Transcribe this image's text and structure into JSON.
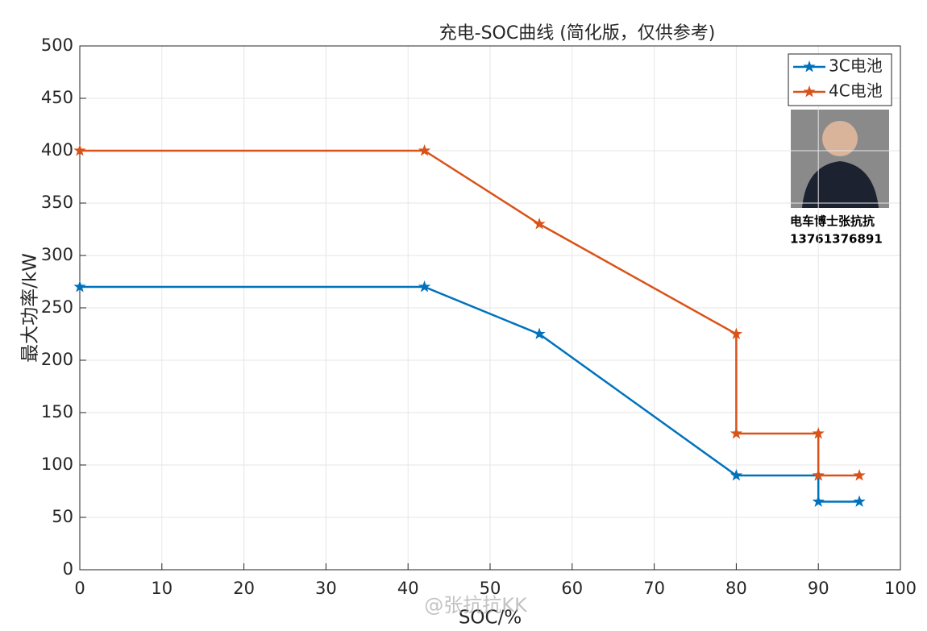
{
  "chart_data": {
    "type": "line",
    "title": "充电-SOC曲线 (简化版，仅供参考)",
    "xlabel": "SOC/%",
    "ylabel": "最大功率/kW",
    "xlim": [
      0,
      100
    ],
    "xticks": [
      0,
      10,
      20,
      30,
      40,
      50,
      60,
      70,
      80,
      90,
      100
    ],
    "ylim": [
      0,
      500
    ],
    "yticks": [
      0,
      50,
      100,
      150,
      200,
      250,
      300,
      350,
      400,
      450,
      500
    ],
    "grid": true,
    "legend": "northeast",
    "series": [
      {
        "name": "3C电池",
        "color": "#0072bd",
        "x": [
          0,
          42,
          56,
          80,
          90,
          90,
          95
        ],
        "values": [
          270,
          270,
          225,
          90,
          90,
          65,
          65
        ]
      },
      {
        "name": "4C电池",
        "color": "#d95319",
        "x": [
          0,
          42,
          56,
          80,
          80,
          90,
          90,
          95
        ],
        "values": [
          400,
          400,
          330,
          225,
          130,
          130,
          90,
          90
        ]
      }
    ],
    "annotations": [
      "电车博士张抗抗",
      "13761376891"
    ],
    "watermark": "@张抗抗KK"
  }
}
